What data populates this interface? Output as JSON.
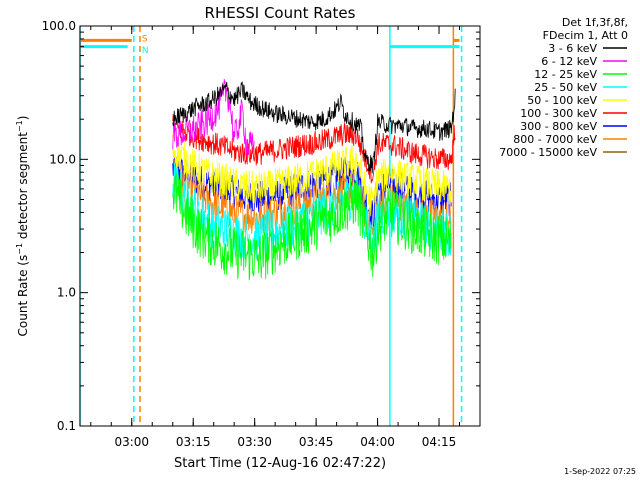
{
  "chart_data": {
    "type": "line",
    "title": "RHESSI Count Rates",
    "xlabel": "Start Time (12-Aug-16 02:47:22)",
    "ylabel": "Count Rate (s⁻¹ detector segment⁻¹)",
    "ylabel_parts": [
      "Count Rate (s",
      "−1",
      " detector segment",
      "−1",
      ")"
    ],
    "yscale": "log",
    "ylim": [
      0.1,
      100.0
    ],
    "xlim": [
      "02:47:22",
      "04:25:00"
    ],
    "x_ticks": [
      {
        "t": "03:00",
        "label": "03:00"
      },
      {
        "t": "03:15",
        "label": "03:15"
      },
      {
        "t": "03:30",
        "label": "03:30"
      },
      {
        "t": "03:45",
        "label": "03:45"
      },
      {
        "t": "04:00",
        "label": "04:00"
      },
      {
        "t": "04:15",
        "label": "04:15"
      }
    ],
    "y_ticks": [
      {
        "value": 0.1,
        "label": "0.1"
      },
      {
        "value": 1.0,
        "label": "1.0"
      },
      {
        "value": 10.0,
        "label": "10.0"
      },
      {
        "value": 100.0,
        "label": "100.0"
      }
    ],
    "grid": false,
    "legend_position": "top-right",
    "legend_header": [
      "Det 1f,3f,8f,",
      "FDecim 1, Att 0"
    ],
    "series": [
      {
        "name": "3 - 6 keV",
        "color": "#000000",
        "points": [
          [
            "03:10",
            "20"
          ],
          [
            "03:13",
            "22"
          ],
          [
            "03:16",
            "25"
          ],
          [
            "03:19",
            "27"
          ],
          [
            "03:21",
            "30"
          ],
          [
            "03:23",
            "34"
          ],
          [
            "03:25",
            "28"
          ],
          [
            "03:27",
            "33"
          ],
          [
            "03:29",
            "27"
          ],
          [
            "03:32",
            "24"
          ],
          [
            "03:35",
            "22"
          ],
          [
            "03:38",
            "21"
          ],
          [
            "03:41",
            "20"
          ],
          [
            "03:44",
            "19"
          ],
          [
            "03:47",
            "20"
          ],
          [
            "03:50",
            "24"
          ],
          [
            "03:51",
            "27"
          ],
          [
            "03:52",
            "22"
          ],
          [
            "03:54",
            "19"
          ],
          [
            "03:56",
            "17"
          ],
          [
            "03:57",
            "10"
          ],
          [
            "03:59",
            "9"
          ],
          [
            "04:00",
            "19"
          ],
          [
            "04:03",
            "18"
          ],
          [
            "04:06",
            "18"
          ],
          [
            "04:09",
            "17"
          ],
          [
            "04:12",
            "17"
          ],
          [
            "04:15",
            "16"
          ],
          [
            "04:18",
            "17"
          ],
          [
            "04:19",
            "30"
          ]
        ]
      },
      {
        "name": "6 - 12 keV",
        "color": "#ff00ff",
        "points": [
          [
            "03:10",
            "15"
          ],
          [
            "03:13",
            "16"
          ],
          [
            "03:16",
            "17"
          ],
          [
            "03:19",
            "20"
          ],
          [
            "03:21",
            "24"
          ],
          [
            "03:23",
            "33"
          ],
          [
            "03:24",
            "27"
          ],
          [
            "03:25",
            "14"
          ],
          [
            "03:27",
            "23"
          ],
          [
            "03:28",
            "13"
          ],
          [
            "03:30",
            "12"
          ]
        ]
      },
      {
        "name": "12 - 25 keV",
        "color": "#00ff00",
        "points": [
          [
            "03:10",
            "6"
          ],
          [
            "03:13",
            "4"
          ],
          [
            "03:16",
            "3"
          ],
          [
            "03:19",
            "2.5"
          ],
          [
            "03:22",
            "2.2"
          ],
          [
            "03:25",
            "2"
          ],
          [
            "03:28",
            "1.9"
          ],
          [
            "03:31",
            "1.8"
          ],
          [
            "03:34",
            "2.1"
          ],
          [
            "03:37",
            "2.4"
          ],
          [
            "03:40",
            "2.7"
          ],
          [
            "03:43",
            "3"
          ],
          [
            "03:46",
            "3.4"
          ],
          [
            "03:49",
            "3.8"
          ],
          [
            "03:52",
            "4.4"
          ],
          [
            "03:55",
            "5"
          ],
          [
            "03:57",
            "3"
          ],
          [
            "03:59",
            "1.9"
          ],
          [
            "04:00",
            "3"
          ],
          [
            "04:03",
            "4"
          ],
          [
            "04:06",
            "3.4"
          ],
          [
            "04:09",
            "3"
          ],
          [
            "04:12",
            "2.7"
          ],
          [
            "04:15",
            "2.5"
          ],
          [
            "04:18",
            "2.4"
          ]
        ]
      },
      {
        "name": "25 - 50 keV",
        "color": "#00ffff",
        "points": [
          [
            "03:10",
            "7"
          ],
          [
            "03:13",
            "5"
          ],
          [
            "03:16",
            "4"
          ],
          [
            "03:19",
            "3.3"
          ],
          [
            "03:22",
            "3"
          ],
          [
            "03:25",
            "2.8"
          ],
          [
            "03:28",
            "2.6"
          ],
          [
            "03:31",
            "2.6"
          ],
          [
            "03:34",
            "2.8"
          ],
          [
            "03:37",
            "3"
          ],
          [
            "03:40",
            "3.3"
          ],
          [
            "03:43",
            "3.6"
          ],
          [
            "03:46",
            "4"
          ],
          [
            "03:49",
            "4.4"
          ],
          [
            "03:52",
            "5"
          ],
          [
            "03:55",
            "5.6"
          ],
          [
            "03:57",
            "3.2"
          ],
          [
            "03:59",
            "2.3"
          ],
          [
            "04:00",
            "3.5"
          ],
          [
            "04:03",
            "4.3"
          ],
          [
            "04:06",
            "3.8"
          ],
          [
            "04:09",
            "3.4"
          ],
          [
            "04:12",
            "3.1"
          ],
          [
            "04:15",
            "2.9"
          ],
          [
            "04:18",
            "2.8"
          ]
        ]
      },
      {
        "name": "50 - 100 keV",
        "color": "#ffff00",
        "points": [
          [
            "03:10",
            "12"
          ],
          [
            "03:13",
            "10"
          ],
          [
            "03:16",
            "8.5"
          ],
          [
            "03:19",
            "7.5"
          ],
          [
            "03:22",
            "7"
          ],
          [
            "03:25",
            "6.5"
          ],
          [
            "03:28",
            "6.2"
          ],
          [
            "03:31",
            "6"
          ],
          [
            "03:34",
            "6.2"
          ],
          [
            "03:37",
            "6.6"
          ],
          [
            "03:40",
            "7"
          ],
          [
            "03:43",
            "7.4"
          ],
          [
            "03:46",
            "8"
          ],
          [
            "03:49",
            "8.6"
          ],
          [
            "03:52",
            "9.2"
          ],
          [
            "03:55",
            "10"
          ],
          [
            "03:57",
            "6"
          ],
          [
            "03:59",
            "4.5"
          ],
          [
            "04:00",
            "7"
          ],
          [
            "04:03",
            "8"
          ],
          [
            "04:06",
            "7.4"
          ],
          [
            "04:09",
            "6.9"
          ],
          [
            "04:12",
            "6.5"
          ],
          [
            "04:15",
            "6.2"
          ],
          [
            "04:18",
            "6"
          ]
        ]
      },
      {
        "name": "100 - 300 keV",
        "color": "#ff0000",
        "points": [
          [
            "03:10",
            "18"
          ],
          [
            "03:13",
            "16"
          ],
          [
            "03:16",
            "14.5"
          ],
          [
            "03:19",
            "13.5"
          ],
          [
            "03:22",
            "12.5"
          ],
          [
            "03:25",
            "11.5"
          ],
          [
            "03:28",
            "11"
          ],
          [
            "03:31",
            "11"
          ],
          [
            "03:34",
            "11.5"
          ],
          [
            "03:37",
            "12"
          ],
          [
            "03:40",
            "12.5"
          ],
          [
            "03:43",
            "13"
          ],
          [
            "03:46",
            "13.5"
          ],
          [
            "03:49",
            "14.5"
          ],
          [
            "03:52",
            "15.5"
          ],
          [
            "03:55",
            "15"
          ],
          [
            "03:57",
            "10"
          ],
          [
            "03:59",
            "7.5"
          ],
          [
            "04:00",
            "13"
          ],
          [
            "04:03",
            "13"
          ],
          [
            "04:06",
            "12"
          ],
          [
            "04:09",
            "11"
          ],
          [
            "04:12",
            "10.5"
          ],
          [
            "04:15",
            "10"
          ],
          [
            "04:18",
            "10"
          ],
          [
            "04:19",
            "18"
          ]
        ]
      },
      {
        "name": "300 - 800 keV",
        "color": "#0000ff",
        "points": [
          [
            "03:10",
            "8.5"
          ],
          [
            "03:13",
            "7.8"
          ],
          [
            "03:16",
            "7"
          ],
          [
            "03:19",
            "6.5"
          ],
          [
            "03:22",
            "6"
          ],
          [
            "03:25",
            "5.6"
          ],
          [
            "03:28",
            "5.3"
          ],
          [
            "03:31",
            "5.1"
          ],
          [
            "03:34",
            "5.3"
          ],
          [
            "03:37",
            "5.6"
          ],
          [
            "03:40",
            "6"
          ],
          [
            "03:43",
            "6.4"
          ],
          [
            "03:46",
            "6.8"
          ],
          [
            "03:49",
            "7.2"
          ],
          [
            "03:52",
            "7.8"
          ],
          [
            "03:55",
            "8"
          ],
          [
            "03:57",
            "5"
          ],
          [
            "03:59",
            "3.6"
          ],
          [
            "04:00",
            "6"
          ],
          [
            "04:03",
            "6.5"
          ],
          [
            "04:06",
            "6"
          ],
          [
            "04:09",
            "5.5"
          ],
          [
            "04:12",
            "5.2"
          ],
          [
            "04:15",
            "5"
          ],
          [
            "04:18",
            "5"
          ]
        ]
      },
      {
        "name": "800 - 7000 keV",
        "color": "#ff8000",
        "points": [
          [
            "03:10",
            "8"
          ],
          [
            "03:13",
            "6.5"
          ],
          [
            "03:16",
            "5.5"
          ],
          [
            "03:19",
            "4.8"
          ],
          [
            "03:22",
            "4.3"
          ],
          [
            "03:25",
            "4"
          ],
          [
            "03:28",
            "3.8"
          ],
          [
            "03:31",
            "3.7"
          ],
          [
            "03:34",
            "3.9"
          ],
          [
            "03:37",
            "4.1"
          ],
          [
            "03:40",
            "4.4"
          ],
          [
            "03:43",
            "4.7"
          ],
          [
            "03:46",
            "5"
          ],
          [
            "03:49",
            "5.4"
          ],
          [
            "03:52",
            "5.8"
          ],
          [
            "03:55",
            "6"
          ],
          [
            "03:57",
            "3.8"
          ],
          [
            "03:59",
            "2.6"
          ],
          [
            "04:00",
            "4.4"
          ],
          [
            "04:03",
            "4.9"
          ],
          [
            "04:06",
            "4.4"
          ],
          [
            "04:09",
            "4"
          ],
          [
            "04:12",
            "3.8"
          ],
          [
            "04:15",
            "3.6"
          ],
          [
            "04:18",
            "3.5"
          ]
        ]
      },
      {
        "name": "7000 - 15000 keV",
        "color": "#8b6508",
        "points": []
      }
    ],
    "annotations": [
      {
        "label": "S",
        "t": "03:01",
        "color": "#ff8000",
        "value": 82
      },
      {
        "label": "N",
        "t": "03:01",
        "color": "#00ffff",
        "value": 67
      }
    ],
    "segment_bars": [
      {
        "color": "#ff8000",
        "value": 78,
        "t_start": "02:47:22",
        "t_end": "03:00"
      },
      {
        "color": "#00ffff",
        "value": 70,
        "t_start": "02:47:22",
        "t_end": "02:59"
      },
      {
        "color": "#00ffff",
        "value": 70,
        "t_start": "04:03",
        "t_end": "04:20"
      },
      {
        "color": "#ff8000",
        "value": 78,
        "t_start": "04:18.5",
        "t_end": "04:20"
      }
    ],
    "vertical_markers": [
      {
        "t": "02:47:22",
        "color": "#00ffff",
        "style": "solid"
      },
      {
        "t": "03:00.5",
        "color": "#00ffff",
        "style": "dashed"
      },
      {
        "t": "03:02",
        "color": "#ff8000",
        "style": "dashed"
      },
      {
        "t": "04:03",
        "color": "#00ffff",
        "style": "solid"
      },
      {
        "t": "04:18.5",
        "color": "#ff8000",
        "style": "solid"
      },
      {
        "t": "04:20.5",
        "color": "#00ffff",
        "style": "dashed"
      }
    ],
    "timestamp": "1-Sep-2022 07:25"
  }
}
